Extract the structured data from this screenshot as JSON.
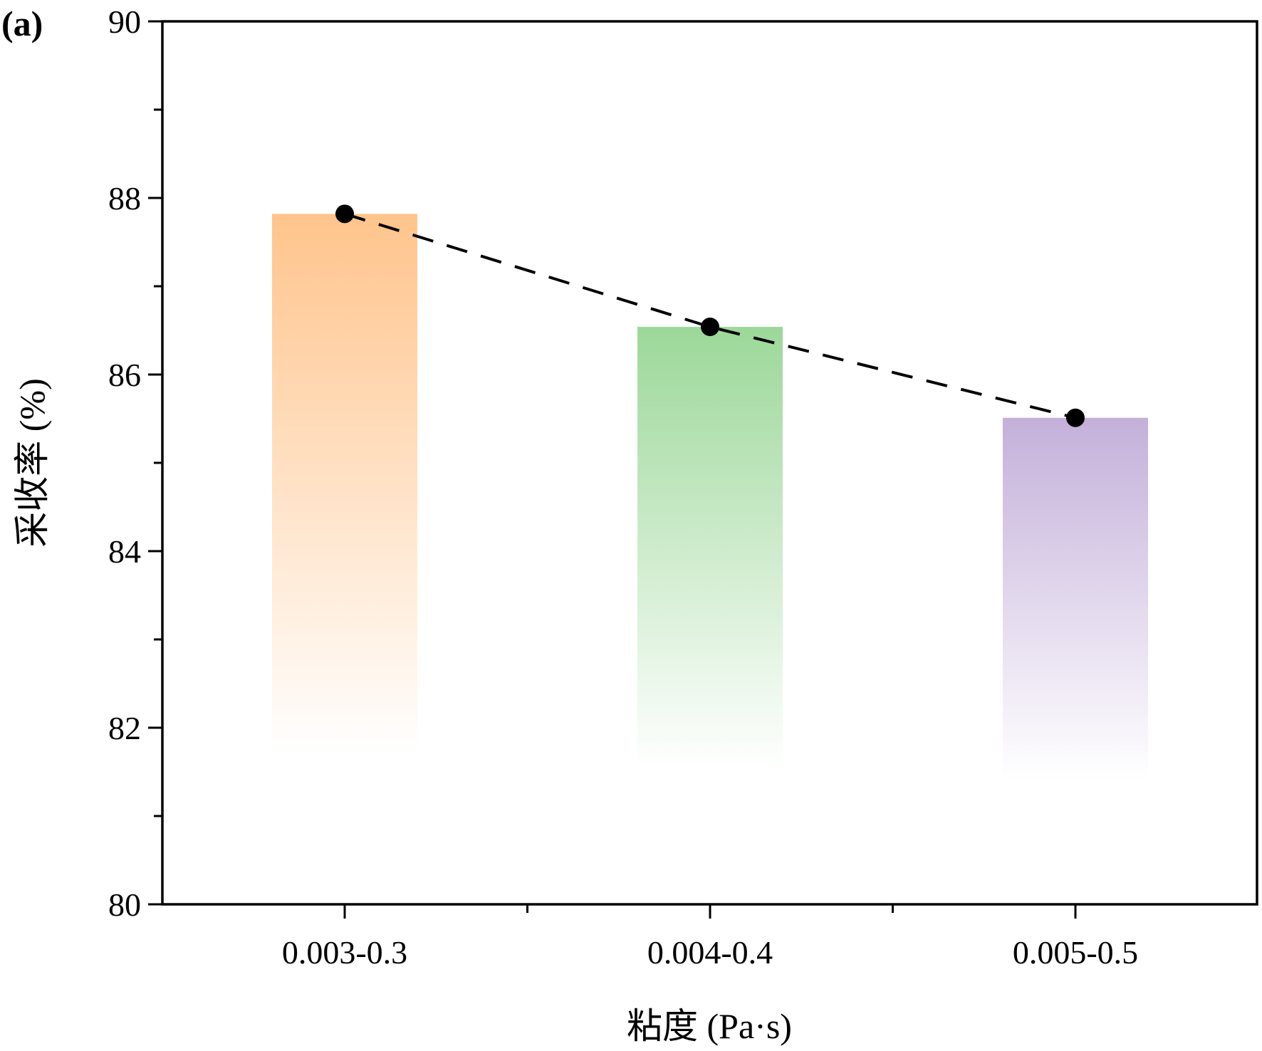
{
  "panel_label": "(a)",
  "chart_data": {
    "type": "bar",
    "categories": [
      "0.003-0.3",
      "0.004-0.4",
      "0.005-0.5"
    ],
    "values": [
      87.82,
      86.54,
      85.51
    ],
    "line_overlay": {
      "style": "dashed",
      "marker": "filled-circle",
      "values": [
        87.82,
        86.54,
        85.51
      ]
    },
    "xlabel": "粘度 (Pa·s)",
    "ylabel": "采收率 (%)",
    "ylim": [
      80,
      90
    ],
    "yticks": [
      "80",
      "82",
      "84",
      "86",
      "88",
      "90"
    ],
    "grid": false,
    "legend": "none",
    "bar_colors": [
      "#FFC48C",
      "#9CD899",
      "#C4B0DA"
    ],
    "bar_fill": "vertical gradient, fading to white toward the bottom"
  }
}
